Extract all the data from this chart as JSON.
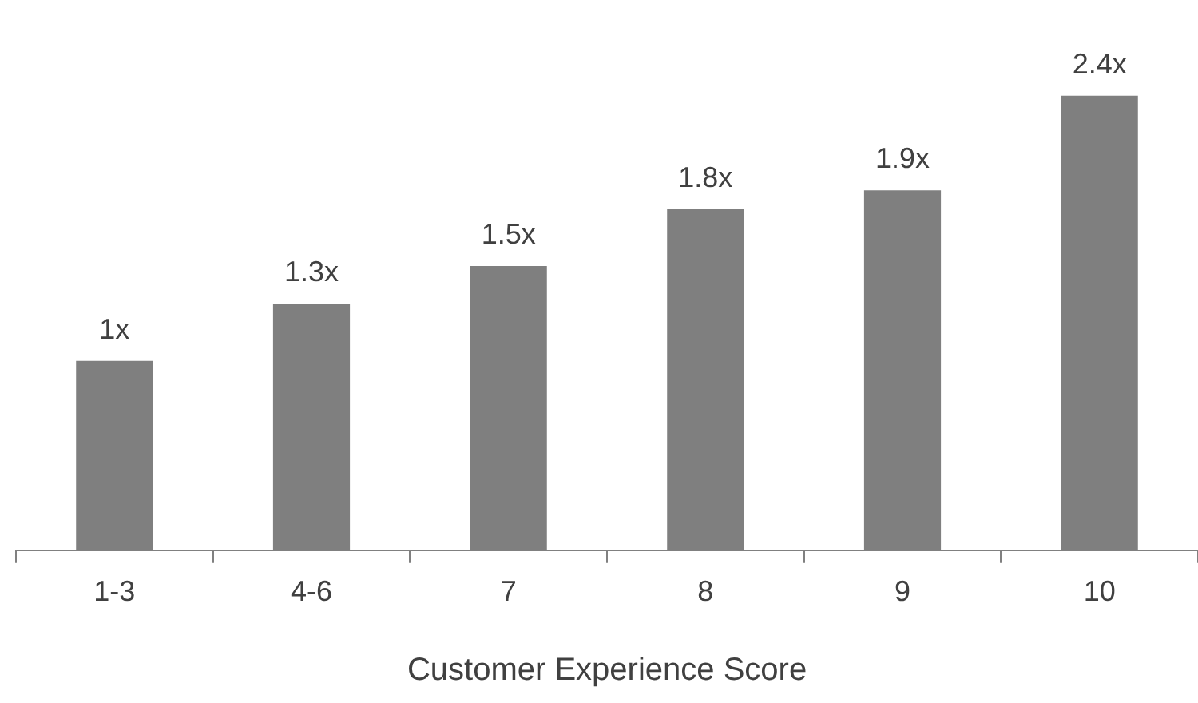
{
  "chart_data": {
    "type": "bar",
    "xlabel": "Customer Experience Score",
    "categories": [
      "1-3",
      "4-6",
      "7",
      "8",
      "9",
      "10"
    ],
    "values": [
      1,
      1.3,
      1.5,
      1.8,
      1.9,
      2.4
    ],
    "value_labels": [
      "1x",
      "1.3x",
      "1.5x",
      "1.8x",
      "1.9x",
      "2.4x"
    ],
    "color": "#7f7f7f",
    "grid": false,
    "legend": false,
    "tick_labels": "x"
  }
}
